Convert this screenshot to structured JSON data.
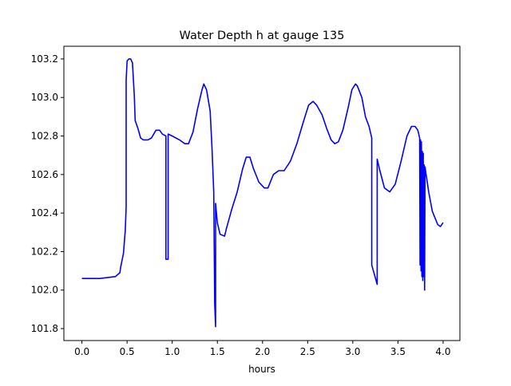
{
  "chart_data": {
    "type": "line",
    "title": "Water Depth h at gauge 135",
    "xlabel": "hours",
    "ylabel": "",
    "xlim": [
      -0.2,
      4.186
    ],
    "ylim": [
      101.738,
      103.266
    ],
    "xticks": [
      0.0,
      0.5,
      1.0,
      1.5,
      2.0,
      2.5,
      3.0,
      3.5,
      4.0
    ],
    "xtick_labels": [
      "0.0",
      "0.5",
      "1.0",
      "1.5",
      "2.0",
      "2.5",
      "3.0",
      "3.5",
      "4.0"
    ],
    "yticks": [
      101.8,
      102.0,
      102.2,
      102.4,
      102.6,
      102.8,
      103.0,
      103.2
    ],
    "ytick_labels": [
      "101.8",
      "102.0",
      "102.2",
      "102.4",
      "102.6",
      "102.8",
      "103.0",
      "103.2"
    ],
    "grid": false,
    "series": [
      {
        "name": "h",
        "color": "#0000ff",
        "x": [
          0,
          0.2,
          0.37,
          0.42,
          0.43,
          0.46,
          0.48,
          0.49,
          0.49,
          0.5,
          0.52,
          0.54,
          0.56,
          0.58,
          0.59,
          0.62,
          0.65,
          0.68,
          0.73,
          0.77,
          0.82,
          0.86,
          0.89,
          0.93,
          0.93,
          0.955,
          0.955,
          1.0,
          1.08,
          1.14,
          1.18,
          1.23,
          1.28,
          1.33,
          1.35,
          1.38,
          1.42,
          1.44,
          1.46,
          1.47,
          1.48,
          1.48,
          1.5,
          1.53,
          1.58,
          1.6,
          1.66,
          1.72,
          1.78,
          1.82,
          1.86,
          1.9,
          1.96,
          2.02,
          2.06,
          2.12,
          2.18,
          2.24,
          2.31,
          2.38,
          2.45,
          2.51,
          2.56,
          2.6,
          2.66,
          2.71,
          2.76,
          2.8,
          2.84,
          2.89,
          2.95,
          2.99,
          3.03,
          3.05,
          3.1,
          3.14,
          3.18,
          3.21,
          3.21,
          3.27,
          3.27,
          3.3,
          3.35,
          3.41,
          3.47,
          3.53,
          3.6,
          3.65,
          3.69,
          3.72,
          3.74,
          3.745,
          3.75,
          3.755,
          3.76,
          3.765,
          3.77,
          3.775,
          3.78,
          3.785,
          3.79,
          3.795,
          3.8,
          3.84,
          3.88,
          3.94,
          3.97,
          4.0
        ],
        "y": [
          102.06,
          102.06,
          102.07,
          102.09,
          102.12,
          102.19,
          102.31,
          102.43,
          103.09,
          103.19,
          103.2,
          103.2,
          103.18,
          103.01,
          102.88,
          102.84,
          102.79,
          102.78,
          102.78,
          102.79,
          102.83,
          102.83,
          102.81,
          102.8,
          102.16,
          102.16,
          102.81,
          102.8,
          102.78,
          102.76,
          102.76,
          102.82,
          102.94,
          103.04,
          103.07,
          103.04,
          102.93,
          102.74,
          102.51,
          101.93,
          101.81,
          102.45,
          102.35,
          102.29,
          102.28,
          102.32,
          102.42,
          102.51,
          102.63,
          102.69,
          102.69,
          102.63,
          102.56,
          102.53,
          102.53,
          102.6,
          102.62,
          102.62,
          102.67,
          102.76,
          102.87,
          102.96,
          102.98,
          102.96,
          102.91,
          102.84,
          102.78,
          102.76,
          102.77,
          102.83,
          102.95,
          103.04,
          103.07,
          103.06,
          103.0,
          102.9,
          102.85,
          102.79,
          102.13,
          102.03,
          102.68,
          102.62,
          102.53,
          102.51,
          102.55,
          102.66,
          102.8,
          102.85,
          102.85,
          102.83,
          102.79,
          102.13,
          102.78,
          102.1,
          102.77,
          102.07,
          102.72,
          102.05,
          102.71,
          102.07,
          102.65,
          102.0,
          102.64,
          102.51,
          102.41,
          102.34,
          102.33,
          102.35
        ]
      }
    ]
  }
}
